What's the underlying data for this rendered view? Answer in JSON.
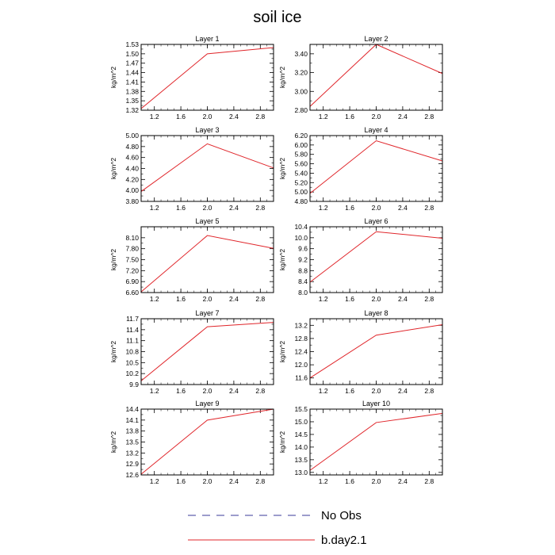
{
  "figure": {
    "title": "soil ice",
    "legend": [
      {
        "label": "No Obs",
        "color": "#3a3a9a",
        "dash": "dashed"
      },
      {
        "label": "b.day2.1",
        "color": "#e0262b",
        "dash": "solid"
      }
    ]
  },
  "chart_data": [
    {
      "type": "line",
      "title": "Layer 1",
      "ylabel": "kg/m^2",
      "xlim": [
        1.0,
        3.0
      ],
      "xticks": [
        "1.2",
        "1.6",
        "2.0",
        "2.4",
        "2.8"
      ],
      "ylim": [
        1.32,
        1.53
      ],
      "yticks": [
        "1.32",
        "1.35",
        "1.38",
        "1.41",
        "1.44",
        "1.47",
        "1.50",
        "1.53"
      ],
      "series": [
        {
          "name": "b.day2.1",
          "color": "#e0262b",
          "x": [
            1,
            2,
            3
          ],
          "y": [
            1.325,
            1.5,
            1.52
          ]
        }
      ]
    },
    {
      "type": "line",
      "title": "Layer 2",
      "ylabel": "kg/m^2",
      "xlim": [
        1.0,
        3.0
      ],
      "xticks": [
        "1.2",
        "1.6",
        "2.0",
        "2.4",
        "2.8"
      ],
      "ylim": [
        2.8,
        3.5
      ],
      "yticks": [
        "2.80",
        "3.00",
        "3.20",
        "3.40"
      ],
      "series": [
        {
          "name": "b.day2.1",
          "color": "#e0262b",
          "x": [
            1,
            2,
            3
          ],
          "y": [
            2.84,
            3.5,
            3.19
          ]
        }
      ]
    },
    {
      "type": "line",
      "title": "Layer 3",
      "ylabel": "kg/m^2",
      "xlim": [
        1.0,
        3.0
      ],
      "xticks": [
        "1.2",
        "1.6",
        "2.0",
        "2.4",
        "2.8"
      ],
      "ylim": [
        3.8,
        5.0
      ],
      "yticks": [
        "3.80",
        "4.00",
        "4.20",
        "4.40",
        "4.60",
        "4.80",
        "5.00"
      ],
      "series": [
        {
          "name": "b.day2.1",
          "color": "#e0262b",
          "x": [
            1,
            2,
            3
          ],
          "y": [
            3.98,
            4.85,
            4.41
          ]
        }
      ]
    },
    {
      "type": "line",
      "title": "Layer 4",
      "ylabel": "kg/m^2",
      "xlim": [
        1.0,
        3.0
      ],
      "xticks": [
        "1.2",
        "1.6",
        "2.0",
        "2.4",
        "2.8"
      ],
      "ylim": [
        4.8,
        6.2
      ],
      "yticks": [
        "4.80",
        "5.00",
        "5.20",
        "5.40",
        "5.60",
        "5.80",
        "6.00",
        "6.20"
      ],
      "series": [
        {
          "name": "b.day2.1",
          "color": "#e0262b",
          "x": [
            1,
            2,
            3
          ],
          "y": [
            4.97,
            6.09,
            5.66
          ]
        }
      ]
    },
    {
      "type": "line",
      "title": "Layer 5",
      "ylabel": "kg/m^2",
      "xlim": [
        1.0,
        3.0
      ],
      "xticks": [
        "1.2",
        "1.6",
        "2.0",
        "2.4",
        "2.8"
      ],
      "ylim": [
        6.6,
        8.4
      ],
      "yticks": [
        "6.60",
        "6.90",
        "7.20",
        "7.50",
        "7.80",
        "8.10"
      ],
      "series": [
        {
          "name": "b.day2.1",
          "color": "#e0262b",
          "x": [
            1,
            2,
            3
          ],
          "y": [
            6.62,
            8.16,
            7.81
          ]
        }
      ]
    },
    {
      "type": "line",
      "title": "Layer 6",
      "ylabel": "kg/m^2",
      "xlim": [
        1.0,
        3.0
      ],
      "xticks": [
        "1.2",
        "1.6",
        "2.0",
        "2.4",
        "2.8"
      ],
      "ylim": [
        8.0,
        10.4
      ],
      "yticks": [
        "8.0",
        "8.4",
        "8.8",
        "9.2",
        "9.6",
        "10.0",
        "10.4"
      ],
      "series": [
        {
          "name": "b.day2.1",
          "color": "#e0262b",
          "x": [
            1,
            2,
            3
          ],
          "y": [
            8.38,
            10.22,
            9.98
          ]
        }
      ]
    },
    {
      "type": "line",
      "title": "Layer 7",
      "ylabel": "kg/m^2",
      "xlim": [
        1.0,
        3.0
      ],
      "xticks": [
        "1.2",
        "1.6",
        "2.0",
        "2.4",
        "2.8"
      ],
      "ylim": [
        9.9,
        11.7
      ],
      "yticks": [
        "9.9",
        "10.2",
        "10.5",
        "10.8",
        "11.1",
        "11.4",
        "11.7"
      ],
      "series": [
        {
          "name": "b.day2.1",
          "color": "#e0262b",
          "x": [
            1,
            2,
            3
          ],
          "y": [
            10.0,
            11.48,
            11.6
          ]
        }
      ]
    },
    {
      "type": "line",
      "title": "Layer 8",
      "ylabel": "kg/m^2",
      "xlim": [
        1.0,
        3.0
      ],
      "xticks": [
        "1.2",
        "1.6",
        "2.0",
        "2.4",
        "2.8"
      ],
      "ylim": [
        11.4,
        13.4
      ],
      "yticks": [
        "11.6",
        "12.0",
        "12.4",
        "12.8",
        "13.2"
      ],
      "series": [
        {
          "name": "b.day2.1",
          "color": "#e0262b",
          "x": [
            1,
            2,
            3
          ],
          "y": [
            11.6,
            12.9,
            13.22
          ]
        }
      ]
    },
    {
      "type": "line",
      "title": "Layer 9",
      "ylabel": "kg/m^2",
      "xlim": [
        1.0,
        3.0
      ],
      "xticks": [
        "1.2",
        "1.6",
        "2.0",
        "2.4",
        "2.8"
      ],
      "ylim": [
        12.6,
        14.4
      ],
      "yticks": [
        "12.6",
        "12.9",
        "13.2",
        "13.5",
        "13.8",
        "14.1",
        "14.4"
      ],
      "series": [
        {
          "name": "b.day2.1",
          "color": "#e0262b",
          "x": [
            1,
            2,
            3
          ],
          "y": [
            12.62,
            14.1,
            14.4
          ]
        }
      ]
    },
    {
      "type": "line",
      "title": "Layer 10",
      "ylabel": "kg/m^2",
      "xlim": [
        1.0,
        3.0
      ],
      "xticks": [
        "1.2",
        "1.6",
        "2.0",
        "2.4",
        "2.8"
      ],
      "ylim": [
        12.9,
        15.5
      ],
      "yticks": [
        "13.0",
        "13.5",
        "14.0",
        "14.5",
        "15.0",
        "15.5"
      ],
      "series": [
        {
          "name": "b.day2.1",
          "color": "#e0262b",
          "x": [
            1,
            2,
            3
          ],
          "y": [
            13.08,
            14.97,
            15.33
          ]
        }
      ]
    }
  ]
}
